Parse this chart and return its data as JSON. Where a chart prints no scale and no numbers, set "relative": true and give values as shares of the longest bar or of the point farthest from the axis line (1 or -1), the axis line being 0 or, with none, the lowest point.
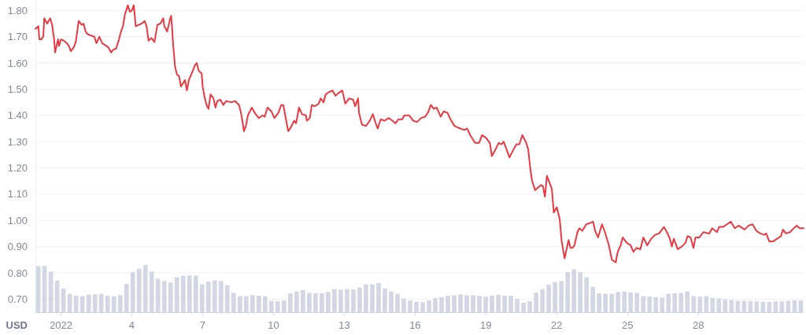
{
  "chart_data": [
    {
      "type": "line",
      "color": "#ea3943",
      "ylabel": "USD",
      "grid": "y",
      "xlim": [
        "2021-12-30T22:00",
        "2022-02-01T11:00"
      ],
      "ylim": [
        0.65,
        1.84
      ],
      "xticks": [
        {
          "value": "2022-01-01",
          "label": "2022"
        },
        {
          "value": "2022-01-04",
          "label": "4"
        },
        {
          "value": "2022-01-07",
          "label": "7"
        },
        {
          "value": "2022-01-10",
          "label": "10"
        },
        {
          "value": "2022-01-13",
          "label": "13"
        },
        {
          "value": "2022-01-16",
          "label": "16"
        },
        {
          "value": "2022-01-19",
          "label": "19"
        },
        {
          "value": "2022-01-22",
          "label": "22"
        },
        {
          "value": "2022-01-25",
          "label": "25"
        },
        {
          "value": "2022-01-28",
          "label": "28"
        }
      ],
      "yticks": [
        {
          "value": 0.7,
          "label": "0.70"
        },
        {
          "value": 0.8,
          "label": "0.80"
        },
        {
          "value": 0.9,
          "label": "0.90"
        },
        {
          "value": 1.0,
          "label": "1.00"
        },
        {
          "value": 1.1,
          "label": "1.10"
        },
        {
          "value": 1.2,
          "label": "1.20"
        },
        {
          "value": 1.3,
          "label": "1.30"
        },
        {
          "value": 1.4,
          "label": "1.40"
        },
        {
          "value": 1.5,
          "label": "1.50"
        },
        {
          "value": 1.6,
          "label": "1.60"
        },
        {
          "value": 1.7,
          "label": "1.70"
        },
        {
          "value": 1.8,
          "label": "1.80"
        }
      ],
      "x": [
        "2021-12-30T22:00",
        "2021-12-31T01:00",
        "2021-12-31T02:00",
        "2021-12-31T04:00",
        "2021-12-31T06:00",
        "2021-12-31T07:00",
        "2021-12-31T10:00",
        "2021-12-31T13:00",
        "2021-12-31T15:00",
        "2021-12-31T17:00",
        "2021-12-31T18:00",
        "2021-12-31T21:00",
        "2021-12-31T22:00",
        "2022-01-01T00:00",
        "2022-01-01T03:00",
        "2022-01-01T06:00",
        "2022-01-01T08:00",
        "2022-01-01T10:00",
        "2022-01-01T13:00",
        "2022-01-01T15:00",
        "2022-01-01T18:00",
        "2022-01-01T21:00",
        "2022-01-01T23:00",
        "2022-01-02T01:00",
        "2022-01-02T03:00",
        "2022-01-02T06:00",
        "2022-01-02T10:00",
        "2022-01-02T12:00",
        "2022-01-02T15:00",
        "2022-01-02T18:00",
        "2022-01-02T22:00",
        "2022-01-03T00:00",
        "2022-01-03T03:00",
        "2022-01-03T05:00",
        "2022-01-03T08:00",
        "2022-01-03T11:00",
        "2022-01-03T13:00",
        "2022-01-03T15:00",
        "2022-01-03T17:00",
        "2022-01-03T20:00",
        "2022-01-03T22:00",
        "2022-01-04T00:00",
        "2022-01-04T02:00",
        "2022-01-04T04:00",
        "2022-01-04T07:00",
        "2022-01-04T10:00",
        "2022-01-04T13:00",
        "2022-01-04T15:00",
        "2022-01-04T17:00",
        "2022-01-04T20:00",
        "2022-01-04T23:00",
        "2022-01-05T02:00",
        "2022-01-05T05:00",
        "2022-01-05T08:00",
        "2022-01-05T09:00",
        "2022-01-05T12:00",
        "2022-01-05T15:00",
        "2022-01-05T16:00",
        "2022-01-05T17:00",
        "2022-01-05T18:00",
        "2022-01-05T20:00",
        "2022-01-05T22:00",
        "2022-01-06T00:00",
        "2022-01-06T02:00",
        "2022-01-06T06:00",
        "2022-01-06T08:00",
        "2022-01-06T10:00",
        "2022-01-06T14:00",
        "2022-01-06T16:00",
        "2022-01-06T18:00",
        "2022-01-06T20:00",
        "2022-01-06T23:00",
        "2022-01-07T00:00",
        "2022-01-07T02:00",
        "2022-01-07T04:00",
        "2022-01-07T06:00",
        "2022-01-07T08:00",
        "2022-01-07T11:00",
        "2022-01-07T13:00",
        "2022-01-07T15:00",
        "2022-01-07T18:00",
        "2022-01-07T21:00",
        "2022-01-08T00:00",
        "2022-01-08T05:00",
        "2022-01-08T09:00",
        "2022-01-08T13:00",
        "2022-01-08T15:00",
        "2022-01-08T17:00",
        "2022-01-08T18:00",
        "2022-01-08T20:00",
        "2022-01-08T22:00",
        "2022-01-09T02:00",
        "2022-01-09T05:00",
        "2022-01-09T09:00",
        "2022-01-09T13:00",
        "2022-01-09T15:00",
        "2022-01-09T18:00",
        "2022-01-09T22:00",
        "2022-01-10T01:00",
        "2022-01-10T05:00",
        "2022-01-10T08:00",
        "2022-01-10T10:00",
        "2022-01-10T13:00",
        "2022-01-10T15:00",
        "2022-01-10T17:00",
        "2022-01-10T21:00",
        "2022-01-10T23:00",
        "2022-01-11T02:00",
        "2022-01-11T05:00",
        "2022-01-11T09:00",
        "2022-01-11T10:00",
        "2022-01-11T13:00",
        "2022-01-11T15:00",
        "2022-01-11T18:00",
        "2022-01-11T22:00",
        "2022-01-12T00:00",
        "2022-01-12T03:00",
        "2022-01-12T05:00",
        "2022-01-12T09:00",
        "2022-01-12T12:00",
        "2022-01-12T15:00",
        "2022-01-12T18:00",
        "2022-01-12T22:00",
        "2022-01-13T01:00",
        "2022-01-13T05:00",
        "2022-01-13T09:00",
        "2022-01-13T11:00",
        "2022-01-13T14:00",
        "2022-01-13T15:00",
        "2022-01-13T18:00",
        "2022-01-13T22:00",
        "2022-01-14T02:00",
        "2022-01-14T05:00",
        "2022-01-14T08:00",
        "2022-01-14T10:00",
        "2022-01-14T13:00",
        "2022-01-14T17:00",
        "2022-01-14T21:00",
        "2022-01-15T01:00",
        "2022-01-15T04:00",
        "2022-01-15T07:00",
        "2022-01-15T11:00",
        "2022-01-15T13:00",
        "2022-01-15T18:00",
        "2022-01-15T22:00",
        "2022-01-16T02:00",
        "2022-01-16T06:00",
        "2022-01-16T10:00",
        "2022-01-16T13:00",
        "2022-01-16T16:00",
        "2022-01-16T19:00",
        "2022-01-16T22:00",
        "2022-01-17T02:00",
        "2022-01-17T05:00",
        "2022-01-17T09:00",
        "2022-01-17T12:00",
        "2022-01-17T16:00",
        "2022-01-17T19:00",
        "2022-01-17T22:00",
        "2022-01-18T02:00",
        "2022-01-18T05:00",
        "2022-01-18T08:00",
        "2022-01-18T13:00",
        "2022-01-18T17:00",
        "2022-01-18T20:00",
        "2022-01-19T00:00",
        "2022-01-19T04:00",
        "2022-01-19T06:00",
        "2022-01-19T09:00",
        "2022-01-19T13:00",
        "2022-01-19T16:00",
        "2022-01-19T18:00",
        "2022-01-19T21:00",
        "2022-01-20T00:00",
        "2022-01-20T04:00",
        "2022-01-20T07:00",
        "2022-01-20T10:00",
        "2022-01-20T13:00",
        "2022-01-20T17:00",
        "2022-01-20T19:00",
        "2022-01-20T21:00",
        "2022-01-20T23:00",
        "2022-01-21T02:00",
        "2022-01-21T05:00",
        "2022-01-21T08:00",
        "2022-01-21T10:00",
        "2022-01-21T12:00",
        "2022-01-21T14:00",
        "2022-01-21T16:00",
        "2022-01-21T19:00",
        "2022-01-21T21:00",
        "2022-01-22T00:00",
        "2022-01-22T03:00",
        "2022-01-22T05:00",
        "2022-01-22T08:00",
        "2022-01-22T12:00",
        "2022-01-22T14:00",
        "2022-01-22T16:00",
        "2022-01-22T18:00",
        "2022-01-22T21:00",
        "2022-01-22T23:00",
        "2022-01-23T02:00",
        "2022-01-23T06:00",
        "2022-01-23T10:00",
        "2022-01-23T13:00",
        "2022-01-23T15:00",
        "2022-01-23T18:00",
        "2022-01-23T22:00",
        "2022-01-24T01:00",
        "2022-01-24T05:00",
        "2022-01-24T08:00",
        "2022-01-24T12:00",
        "2022-01-24T14:00",
        "2022-01-24T17:00",
        "2022-01-24T19:00",
        "2022-01-24T23:00",
        "2022-01-25T03:00",
        "2022-01-25T06:00",
        "2022-01-25T09:00",
        "2022-01-25T13:00",
        "2022-01-25T16:00",
        "2022-01-25T20:00",
        "2022-01-26T00:00",
        "2022-01-26T04:00",
        "2022-01-26T08:00",
        "2022-01-26T13:00",
        "2022-01-26T16:00",
        "2022-01-26T19:00",
        "2022-01-26T21:00",
        "2022-01-26T23:00",
        "2022-01-27T03:00",
        "2022-01-27T07:00",
        "2022-01-27T11:00",
        "2022-01-27T13:00",
        "2022-01-27T16:00",
        "2022-01-27T19:00",
        "2022-01-27T21:00",
        "2022-01-28T01:00",
        "2022-01-28T05:00",
        "2022-01-28T11:00",
        "2022-01-28T14:00",
        "2022-01-28T19:00",
        "2022-01-28T21:00",
        "2022-01-29T01:00",
        "2022-01-29T05:00",
        "2022-01-29T09:00",
        "2022-01-29T13:00",
        "2022-01-29T17:00",
        "2022-01-29T23:00",
        "2022-01-30T03:00",
        "2022-01-30T07:00",
        "2022-01-30T11:00",
        "2022-01-30T15:00",
        "2022-01-30T19:00",
        "2022-01-30T21:00",
        "2022-01-31T00:00",
        "2022-01-31T04:00",
        "2022-01-31T08:00",
        "2022-01-31T12:00",
        "2022-01-31T14:00",
        "2022-01-31T17:00",
        "2022-01-31T21:00",
        "2022-02-01T01:00",
        "2022-02-01T04:00",
        "2022-02-01T07:00",
        "2022-02-01T11:00"
      ],
      "values": [
        1.73,
        1.74,
        1.69,
        1.69,
        1.7,
        1.77,
        1.75,
        1.77,
        1.745,
        1.69,
        1.64,
        1.69,
        1.665,
        1.69,
        1.685,
        1.675,
        1.665,
        1.645,
        1.66,
        1.68,
        1.76,
        1.745,
        1.75,
        1.72,
        1.71,
        1.705,
        1.7,
        1.675,
        1.7,
        1.675,
        1.665,
        1.66,
        1.64,
        1.65,
        1.655,
        1.69,
        1.72,
        1.74,
        1.785,
        1.82,
        1.795,
        1.8,
        1.82,
        1.74,
        1.745,
        1.75,
        1.76,
        1.74,
        1.685,
        1.695,
        1.68,
        1.745,
        1.75,
        1.77,
        1.74,
        1.72,
        1.77,
        1.78,
        1.73,
        1.67,
        1.585,
        1.555,
        1.55,
        1.51,
        1.535,
        1.495,
        1.535,
        1.57,
        1.59,
        1.6,
        1.57,
        1.56,
        1.51,
        1.47,
        1.44,
        1.425,
        1.48,
        1.465,
        1.43,
        1.455,
        1.46,
        1.44,
        1.455,
        1.45,
        1.455,
        1.44,
        1.41,
        1.365,
        1.34,
        1.36,
        1.4,
        1.43,
        1.41,
        1.39,
        1.4,
        1.395,
        1.43,
        1.415,
        1.39,
        1.41,
        1.44,
        1.44,
        1.38,
        1.34,
        1.35,
        1.38,
        1.37,
        1.43,
        1.405,
        1.4,
        1.38,
        1.39,
        1.44,
        1.435,
        1.445,
        1.465,
        1.45,
        1.48,
        1.49,
        1.495,
        1.475,
        1.485,
        1.495,
        1.445,
        1.465,
        1.46,
        1.435,
        1.465,
        1.41,
        1.365,
        1.36,
        1.38,
        1.405,
        1.37,
        1.35,
        1.385,
        1.38,
        1.39,
        1.38,
        1.37,
        1.385,
        1.385,
        1.4,
        1.4,
        1.38,
        1.375,
        1.39,
        1.395,
        1.41,
        1.44,
        1.425,
        1.43,
        1.395,
        1.415,
        1.41,
        1.385,
        1.36,
        1.355,
        1.35,
        1.345,
        1.35,
        1.325,
        1.295,
        1.295,
        1.325,
        1.315,
        1.295,
        1.245,
        1.265,
        1.295,
        1.29,
        1.3,
        1.27,
        1.24,
        1.27,
        1.29,
        1.29,
        1.325,
        1.295,
        1.27,
        1.2,
        1.15,
        1.115,
        1.125,
        1.135,
        1.13,
        1.09,
        1.17,
        1.15,
        1.12,
        1.03,
        1.05,
        1.005,
        0.92,
        0.855,
        0.925,
        0.895,
        0.895,
        0.905,
        0.955,
        0.97,
        0.96,
        0.985,
        0.99,
        0.995,
        0.96,
        0.935,
        0.985,
        0.955,
        0.905,
        0.85,
        0.84,
        0.88,
        0.905,
        0.935,
        0.915,
        0.905,
        0.88,
        0.895,
        0.89,
        0.935,
        0.905,
        0.93,
        0.945,
        0.95,
        0.975,
        0.955,
        0.93,
        0.9,
        0.93,
        0.89,
        0.9,
        0.915,
        0.94,
        0.935,
        0.895,
        0.935,
        0.935,
        0.955,
        0.95,
        0.97,
        0.955,
        0.975,
        0.975,
        0.985,
        0.995,
        0.97,
        0.98,
        0.965,
        0.98,
        0.985,
        0.96,
        0.95,
        0.945,
        0.95,
        0.92,
        0.92,
        0.93,
        0.94,
        0.965,
        0.95,
        0.955,
        0.97,
        0.98,
        0.97,
        0.97
      ]
    },
    {
      "type": "bar",
      "relative": true,
      "color": "#d1d7e3",
      "categories": [
        null,
        null,
        null,
        null,
        null,
        null,
        null,
        null,
        null,
        null,
        null,
        null,
        null,
        null,
        null,
        null,
        null,
        null,
        null,
        null,
        null,
        null,
        null,
        null,
        null,
        null,
        null,
        null,
        null,
        null,
        null,
        null,
        null,
        null,
        null,
        null,
        null,
        null,
        null,
        null,
        null,
        null,
        null,
        null,
        null,
        null,
        null,
        null,
        null,
        null,
        null,
        null,
        null,
        null,
        null,
        null,
        null,
        null,
        null,
        null,
        null,
        null,
        null,
        null,
        null,
        null,
        null,
        null,
        null,
        null,
        null,
        null,
        null,
        null,
        null,
        null,
        null,
        null,
        null,
        null,
        null,
        null,
        null,
        null,
        null,
        null,
        null,
        null,
        null,
        null,
        null,
        null,
        null,
        null,
        null,
        null,
        null,
        null,
        null,
        null,
        null,
        null,
        null,
        null,
        null,
        null,
        null,
        null,
        null,
        null,
        null,
        null,
        null,
        null,
        null,
        null,
        null,
        null,
        null,
        null,
        null,
        null
      ],
      "values": [
        0.98,
        0.98,
        0.86,
        0.67,
        0.5,
        0.39,
        0.35,
        0.34,
        0.37,
        0.38,
        0.39,
        0.35,
        0.34,
        0.36,
        0.6,
        0.85,
        0.92,
        1,
        0.86,
        0.71,
        0.66,
        0.63,
        0.74,
        0.77,
        0.78,
        0.78,
        0.59,
        0.65,
        0.67,
        0.66,
        0.57,
        0.41,
        0.34,
        0.34,
        0.36,
        0.35,
        0.34,
        0.24,
        0.23,
        0.25,
        0.4,
        0.44,
        0.47,
        0.41,
        0.4,
        0.4,
        0.43,
        0.49,
        0.48,
        0.49,
        0.48,
        0.52,
        0.59,
        0.59,
        0.62,
        0.5,
        0.44,
        0.39,
        0.29,
        0.25,
        0.22,
        0.21,
        0.25,
        0.3,
        0.32,
        0.35,
        0.36,
        0.38,
        0.36,
        0.36,
        0.35,
        0.33,
        0.35,
        0.37,
        0.35,
        0.35,
        0.28,
        0.2,
        0.23,
        0.42,
        0.49,
        0.58,
        0.64,
        0.66,
        0.85,
        0.91,
        0.85,
        0.74,
        0.54,
        0.4,
        0.39,
        0.39,
        0.43,
        0.44,
        0.42,
        0.41,
        0.34,
        0.33,
        0.32,
        0.31,
        0.39,
        0.4,
        0.41,
        0.44,
        0.34,
        0.33,
        0.34,
        0.3,
        0.29,
        0.27,
        0.26,
        0.24,
        0.24,
        0.23,
        0.23,
        0.22,
        0.22,
        0.23,
        0.23,
        0.24,
        0.25,
        0.25
      ]
    }
  ]
}
